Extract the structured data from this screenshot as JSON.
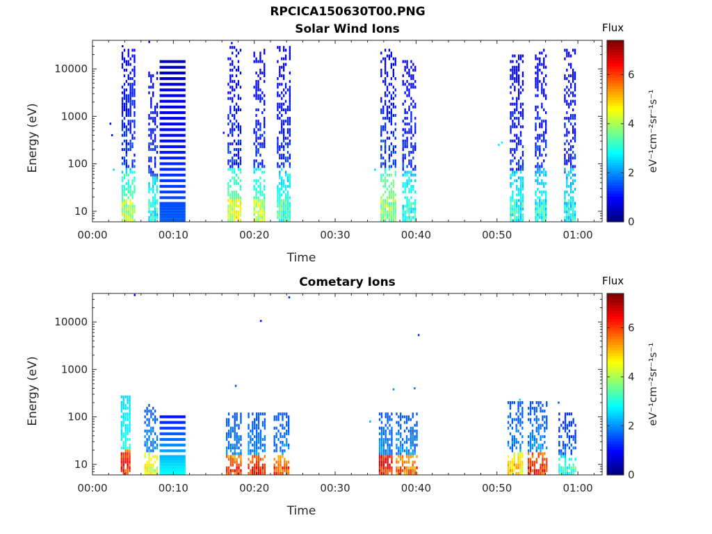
{
  "figure": {
    "main_title": "RPCICA150630T00.PNG"
  },
  "chart_data": [
    {
      "type": "heatmap",
      "title": "Solar Wind Ions",
      "xlabel": "Time",
      "ylabel": "Energy (eV)",
      "x_unit": "minutes",
      "x_range": [
        0,
        63
      ],
      "y_scale": "log",
      "y_range": [
        6,
        40000
      ],
      "x_ticks": [
        {
          "value": 0,
          "label": "00:00"
        },
        {
          "value": 10,
          "label": "00:10"
        },
        {
          "value": 20,
          "label": "00:20"
        },
        {
          "value": 30,
          "label": "00:30"
        },
        {
          "value": 40,
          "label": "00:40"
        },
        {
          "value": 50,
          "label": "00:50"
        },
        {
          "value": 60,
          "label": "01:00"
        }
      ],
      "y_ticks": [
        {
          "value": 10,
          "label": "10"
        },
        {
          "value": 100,
          "label": "100"
        },
        {
          "value": 1000,
          "label": "1000"
        },
        {
          "value": 10000,
          "label": "10000"
        }
      ],
      "colorbar": {
        "label": "Flux",
        "unit_label": "eV⁻¹cm⁻²sr⁻¹s⁻¹",
        "range": [
          0,
          7.4
        ],
        "ticks": [
          {
            "value": 0,
            "label": "0"
          },
          {
            "value": 2,
            "label": "2"
          },
          {
            "value": 4,
            "label": "4"
          },
          {
            "value": 6,
            "label": "6"
          }
        ],
        "colormap": "jet"
      },
      "bursts": [
        {
          "t0": 3.6,
          "t1": 5.2,
          "e_min": 6,
          "e_max": 25000,
          "low_flux": 3.4,
          "peak_flux": 4.8,
          "high_flux": 0.9,
          "density": 0.6
        },
        {
          "t0": 6.9,
          "t1": 8.1,
          "e_min": 6,
          "e_max": 8000,
          "low_flux": 3.0,
          "peak_flux": 3.6,
          "high_flux": 0.8,
          "density": 0.5
        },
        {
          "t0": 16.7,
          "t1": 18.3,
          "e_min": 6,
          "e_max": 30000,
          "low_flux": 3.5,
          "peak_flux": 5.0,
          "high_flux": 0.8,
          "density": 0.55
        },
        {
          "t0": 19.9,
          "t1": 21.2,
          "e_min": 6,
          "e_max": 25000,
          "low_flux": 3.2,
          "peak_flux": 4.8,
          "high_flux": 0.8,
          "density": 0.55
        },
        {
          "t0": 22.8,
          "t1": 24.4,
          "e_min": 6,
          "e_max": 30000,
          "low_flux": 3.0,
          "peak_flux": 4.0,
          "high_flux": 0.8,
          "density": 0.55
        },
        {
          "t0": 35.6,
          "t1": 37.4,
          "e_min": 6,
          "e_max": 25000,
          "low_flux": 3.8,
          "peak_flux": 4.6,
          "high_flux": 0.9,
          "density": 0.55
        },
        {
          "t0": 38.3,
          "t1": 40.0,
          "e_min": 6,
          "e_max": 15000,
          "low_flux": 3.0,
          "peak_flux": 3.6,
          "high_flux": 0.8,
          "density": 0.5
        },
        {
          "t0": 51.6,
          "t1": 53.2,
          "e_min": 6,
          "e_max": 20000,
          "low_flux": 2.8,
          "peak_flux": 3.6,
          "high_flux": 0.8,
          "density": 0.55
        },
        {
          "t0": 54.7,
          "t1": 56.2,
          "e_min": 6,
          "e_max": 25000,
          "low_flux": 2.8,
          "peak_flux": 3.6,
          "high_flux": 0.8,
          "density": 0.55
        },
        {
          "t0": 58.3,
          "t1": 59.7,
          "e_min": 6,
          "e_max": 25000,
          "low_flux": 2.6,
          "peak_flux": 3.4,
          "high_flux": 0.8,
          "density": 0.5
        }
      ],
      "banded_block": {
        "t0": 8.3,
        "t1": 11.5,
        "e_min": 6,
        "e_max": 15000,
        "low_flux": 1.6,
        "high_flux": 0.4
      },
      "isolated_points": [
        {
          "t": 2.2,
          "e": 700,
          "flux": 0.8
        },
        {
          "t": 2.4,
          "e": 400,
          "flux": 1.0
        },
        {
          "t": 2.6,
          "e": 75,
          "flux": 2.5
        },
        {
          "t": 3.7,
          "e": 30000,
          "flux": 0.7
        },
        {
          "t": 7.0,
          "e": 37000,
          "flux": 0.7
        },
        {
          "t": 16.2,
          "e": 450,
          "flux": 0.8
        },
        {
          "t": 34.9,
          "e": 75,
          "flux": 2.5
        },
        {
          "t": 50.2,
          "e": 250,
          "flux": 2.7
        },
        {
          "t": 50.6,
          "e": 280,
          "flux": 2.7
        },
        {
          "t": 17.2,
          "e": 35000,
          "flux": 0.8
        }
      ]
    },
    {
      "type": "heatmap",
      "title": "Cometary Ions",
      "xlabel": "Time",
      "ylabel": "Energy (eV)",
      "x_unit": "minutes",
      "x_range": [
        0,
        63
      ],
      "y_scale": "log",
      "y_range": [
        6,
        40000
      ],
      "x_ticks": [
        {
          "value": 0,
          "label": "00:00"
        },
        {
          "value": 10,
          "label": "00:10"
        },
        {
          "value": 20,
          "label": "00:20"
        },
        {
          "value": 30,
          "label": "00:30"
        },
        {
          "value": 40,
          "label": "00:40"
        },
        {
          "value": 50,
          "label": "00:50"
        },
        {
          "value": 60,
          "label": "01:00"
        }
      ],
      "y_ticks": [
        {
          "value": 10,
          "label": "10"
        },
        {
          "value": 100,
          "label": "100"
        },
        {
          "value": 1000,
          "label": "1000"
        },
        {
          "value": 10000,
          "label": "10000"
        }
      ],
      "colorbar": {
        "label": "Flux",
        "unit_label": "eV⁻¹cm⁻²sr⁻¹s⁻¹",
        "range": [
          0,
          7.4
        ],
        "ticks": [
          {
            "value": 0,
            "label": "0"
          },
          {
            "value": 2,
            "label": "2"
          },
          {
            "value": 4,
            "label": "4"
          },
          {
            "value": 6,
            "label": "6"
          }
        ],
        "colormap": "jet"
      },
      "bursts": [
        {
          "t0": 3.5,
          "t1": 4.7,
          "e_min": 6,
          "e_max": 250,
          "low_flux": 6.5,
          "peak_flux": 7.0,
          "high_flux": 2.5,
          "density": 0.9
        },
        {
          "t0": 6.4,
          "t1": 8.1,
          "e_min": 6,
          "e_max": 180,
          "low_flux": 4.8,
          "peak_flux": 5.0,
          "high_flux": 1.5,
          "density": 0.6
        },
        {
          "t0": 16.5,
          "t1": 18.3,
          "e_min": 6,
          "e_max": 120,
          "low_flux": 6.0,
          "peak_flux": 6.8,
          "high_flux": 1.5,
          "density": 0.75
        },
        {
          "t0": 19.2,
          "t1": 21.3,
          "e_min": 6,
          "e_max": 120,
          "low_flux": 6.2,
          "peak_flux": 7.0,
          "high_flux": 1.5,
          "density": 0.75
        },
        {
          "t0": 22.4,
          "t1": 24.4,
          "e_min": 6,
          "e_max": 120,
          "low_flux": 5.8,
          "peak_flux": 6.5,
          "high_flux": 1.5,
          "density": 0.6
        },
        {
          "t0": 35.4,
          "t1": 37.0,
          "e_min": 6,
          "e_max": 120,
          "low_flux": 6.8,
          "peak_flux": 7.2,
          "high_flux": 1.5,
          "density": 0.85
        },
        {
          "t0": 37.5,
          "t1": 40.2,
          "e_min": 6,
          "e_max": 120,
          "low_flux": 5.8,
          "peak_flux": 6.5,
          "high_flux": 1.5,
          "density": 0.65
        },
        {
          "t0": 51.3,
          "t1": 53.2,
          "e_min": 6,
          "e_max": 200,
          "low_flux": 5.0,
          "peak_flux": 5.5,
          "high_flux": 1.5,
          "density": 0.6
        },
        {
          "t0": 53.8,
          "t1": 56.3,
          "e_min": 6,
          "e_max": 200,
          "low_flux": 6.2,
          "peak_flux": 6.8,
          "high_flux": 1.5,
          "density": 0.65
        },
        {
          "t0": 57.6,
          "t1": 59.8,
          "e_min": 6,
          "e_max": 120,
          "low_flux": 3.2,
          "peak_flux": 3.8,
          "high_flux": 1.2,
          "density": 0.5
        }
      ],
      "banded_block": {
        "t0": 8.3,
        "t1": 11.5,
        "e_min": 6,
        "e_max": 120,
        "low_flux": 2.8,
        "high_flux": 0.9
      },
      "isolated_points": [
        {
          "t": 5.2,
          "e": 37000,
          "flux": 1.0
        },
        {
          "t": 20.8,
          "e": 10500,
          "flux": 1.2
        },
        {
          "t": 24.3,
          "e": 33000,
          "flux": 1.2
        },
        {
          "t": 40.3,
          "e": 5300,
          "flux": 1.2
        },
        {
          "t": 17.7,
          "e": 450,
          "flux": 1.5
        },
        {
          "t": 37.2,
          "e": 380,
          "flux": 2.0
        },
        {
          "t": 39.8,
          "e": 400,
          "flux": 1.8
        },
        {
          "t": 34.3,
          "e": 80,
          "flux": 2.2
        },
        {
          "t": 57.6,
          "e": 200,
          "flux": 1.5
        },
        {
          "t": 52.8,
          "e": 230,
          "flux": 2.5
        }
      ]
    }
  ]
}
